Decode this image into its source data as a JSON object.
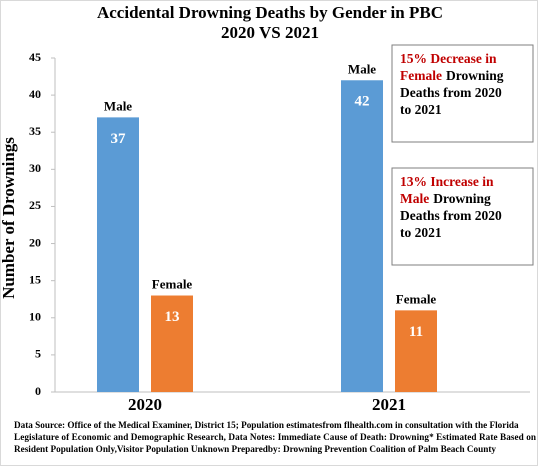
{
  "chart_data": {
    "type": "bar",
    "title": "Accidental Drowning Deaths by Gender in PBC",
    "subtitle": "2020 VS 2021",
    "y_label": "Number of Drownings",
    "categories": [
      "2020",
      "2021"
    ],
    "series": [
      {
        "name": "Male",
        "color": "#5b9bd5",
        "values": [
          37,
          42
        ]
      },
      {
        "name": "Female",
        "color": "#ed7d31",
        "values": [
          13,
          11
        ]
      }
    ],
    "ylim": [
      0,
      45
    ],
    "yticks": [
      0,
      5,
      10,
      15,
      20,
      25,
      30,
      35,
      40,
      45
    ],
    "grid": false,
    "annotations": [
      {
        "lines": [
          [
            {
              "text": "15% Decrease in",
              "color": "#c00000"
            }
          ],
          [
            {
              "text": "Female",
              "color": "#c00000"
            },
            {
              "text": "Drowning",
              "color": "#000000"
            }
          ],
          [
            {
              "text": "Deaths from 2020",
              "color": "#000000"
            }
          ],
          [
            {
              "text": "to 2021",
              "color": "#000000"
            }
          ]
        ]
      },
      {
        "lines": [
          [
            {
              "text": "13% Increase in",
              "color": "#c00000"
            }
          ],
          [
            {
              "text": "Male",
              "color": "#c00000"
            },
            {
              "text": "Drowning",
              "color": "#000000"
            }
          ],
          [
            {
              "text": "Deaths from 2020",
              "color": "#000000"
            }
          ],
          [
            {
              "text": "to 2021",
              "color": "#000000"
            }
          ]
        ]
      }
    ],
    "source": [
      "Data Source: Office of the Medical Examiner, District 15; Population estimatesfrom flhealth.com in consultation with the Florida",
      "Legislature of Economic and Demographic Research, Data Notes: Immediate Cause of Death: Drowning* Estimated Rate Based on",
      "Resident Population Only,Visitor Population Unknown Preparedby: Drowning Prevention Coalition of Palm Beach County"
    ]
  }
}
